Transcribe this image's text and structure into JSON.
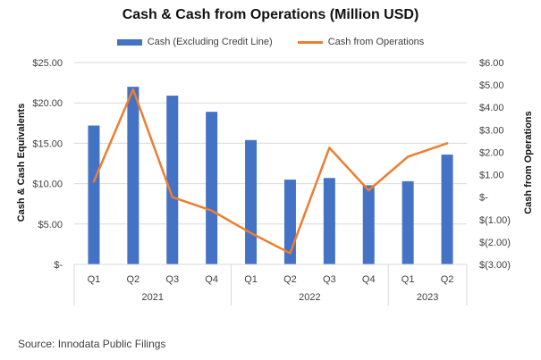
{
  "chart_data": {
    "type": "bar+line",
    "title": "Cash & Cash from Operations (Million USD)",
    "ylabel": "Cash & Cash Equivalents",
    "y2label": "Cash from Operations",
    "ylim": [
      0,
      25
    ],
    "y2lim": [
      -3,
      6
    ],
    "yticks": [
      "$-",
      "$5.00",
      "$10.00",
      "$15.00",
      "$20.00",
      "$25.00"
    ],
    "y2ticks": [
      "$(3.00)",
      "$(2.00)",
      "$(1.00)",
      "$-",
      "$1.00",
      "$2.00",
      "$3.00",
      "$4.00",
      "$5.00",
      "$6.00"
    ],
    "quarters": [
      "Q1",
      "Q2",
      "Q3",
      "Q4",
      "Q1",
      "Q2",
      "Q3",
      "Q4",
      "Q1",
      "Q2"
    ],
    "years": [
      {
        "label": "2021",
        "count": 4
      },
      {
        "label": "2022",
        "count": 4
      },
      {
        "label": "2023",
        "count": 2
      }
    ],
    "series": [
      {
        "name": "Cash (Excluding Credit Line)",
        "type": "bar",
        "axis": "left",
        "color": "#4472C4",
        "values": [
          17.2,
          22.0,
          20.9,
          18.9,
          15.4,
          10.5,
          10.7,
          9.8,
          10.3,
          13.6
        ]
      },
      {
        "name": "Cash from Operations",
        "type": "line",
        "axis": "right",
        "color": "#ED7D31",
        "values": [
          0.7,
          4.8,
          0.0,
          -0.6,
          -1.6,
          -2.5,
          2.2,
          0.3,
          1.8,
          2.4
        ]
      }
    ]
  },
  "source": "Source: Innodata Public Filings"
}
